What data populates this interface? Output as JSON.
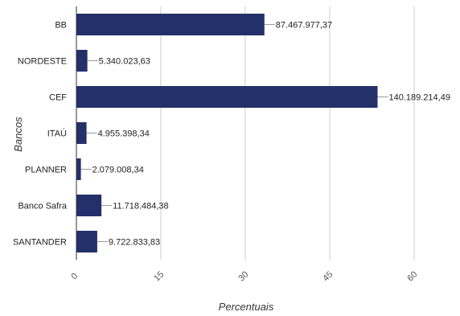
{
  "chart_data": {
    "type": "bar",
    "orientation": "horizontal",
    "categories": [
      "BB",
      "NORDESTE",
      "CEF",
      "ITAÚ",
      "PLANNER",
      "Banco Safra",
      "SANTANDER"
    ],
    "values": [
      33.4,
      1.95,
      53.5,
      1.8,
      0.8,
      4.45,
      3.7
    ],
    "data_labels": [
      "87.467.977,37",
      "5.340.023,63",
      "140.189.214,49",
      "4.955.398,34",
      "2.079.008,34",
      "11.718.484,38",
      "9.722.833,83"
    ],
    "xlabel": "Percentuais",
    "ylabel": "Bancos",
    "xlim": [
      0,
      60
    ],
    "x_ticks": [
      "0",
      "15",
      "30",
      "45",
      "60"
    ],
    "grid": true,
    "colors": {
      "bar": "#233069",
      "grid": "#cccccc",
      "axis": "#333333",
      "leader": "#999999"
    }
  }
}
